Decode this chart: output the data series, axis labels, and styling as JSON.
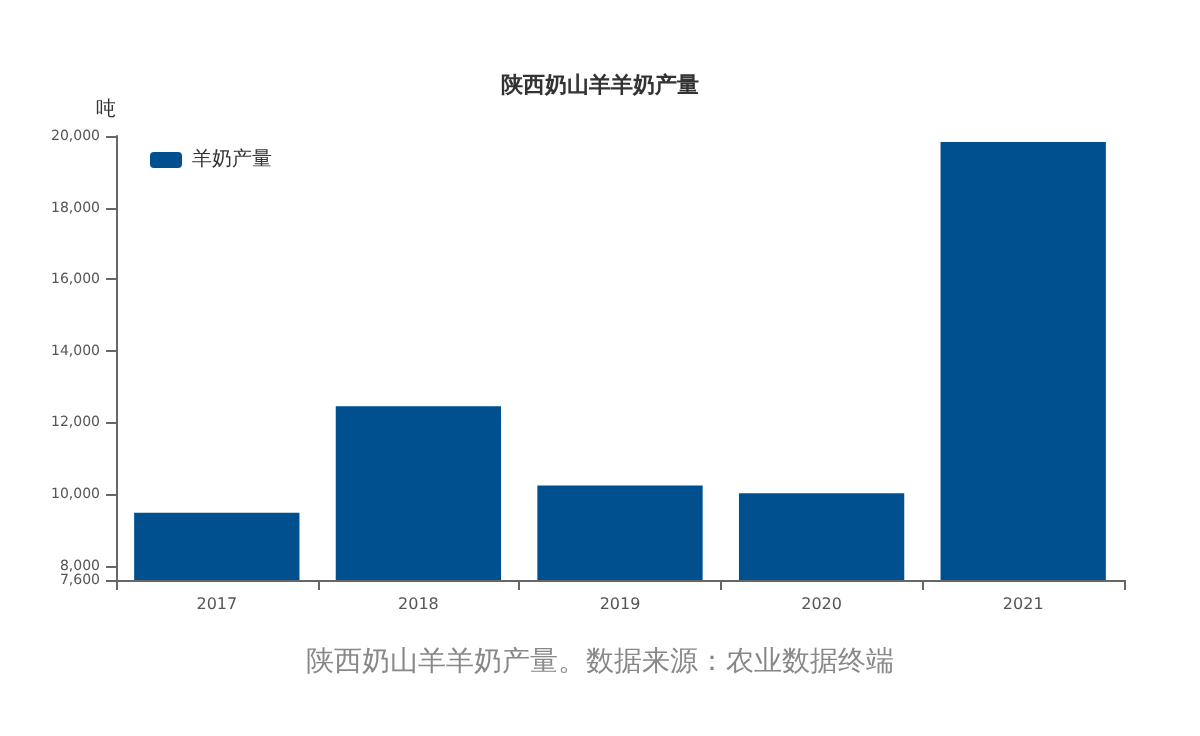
{
  "chart_data": {
    "type": "bar",
    "title": "陕西奶山羊羊奶产量",
    "ylabel": "吨",
    "categories": [
      "2017",
      "2018",
      "2019",
      "2020",
      "2021"
    ],
    "series": [
      {
        "name": "羊奶产量",
        "color": "#00508f",
        "values": [
          9480,
          12450,
          10240,
          10020,
          19830
        ]
      }
    ],
    "ylim": [
      7600,
      20000
    ],
    "yticks": [
      {
        "value": 7600,
        "label": "7,600"
      },
      {
        "value": 8000,
        "label": "8,000"
      },
      {
        "value": 10000,
        "label": "10,000"
      },
      {
        "value": 12000,
        "label": "12,000"
      },
      {
        "value": 14000,
        "label": "14,000"
      },
      {
        "value": 16000,
        "label": "16,000"
      },
      {
        "value": 18000,
        "label": "18,000"
      },
      {
        "value": 20000,
        "label": "20,000"
      }
    ],
    "grid": false,
    "legend": "top left",
    "annotations": [
      "陕西奶山羊羊奶产量。数据来源：农业数据终端"
    ]
  }
}
